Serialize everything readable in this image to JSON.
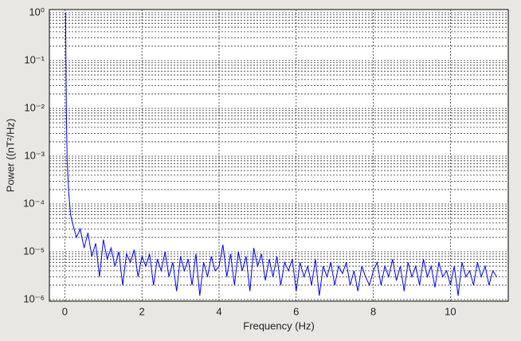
{
  "chart_data": {
    "type": "line",
    "xlabel": "Frequency (Hz)",
    "ylabel": "Power ((nT²/Hz)",
    "x": [
      0.02,
      0.04,
      0.06,
      0.1,
      0.15,
      0.2,
      0.3,
      0.4,
      0.5,
      0.6,
      0.7,
      0.8,
      0.9,
      1.0,
      1.1,
      1.2,
      1.3,
      1.4,
      1.5,
      1.6,
      1.7,
      1.8,
      1.9,
      2.0,
      2.1,
      2.2,
      2.3,
      2.4,
      2.5,
      2.6,
      2.7,
      2.8,
      2.9,
      3.0,
      3.1,
      3.2,
      3.3,
      3.4,
      3.5,
      3.6,
      3.7,
      3.8,
      3.9,
      4.0,
      4.1,
      4.2,
      4.3,
      4.4,
      4.5,
      4.6,
      4.7,
      4.8,
      4.9,
      5.0,
      5.1,
      5.2,
      5.3,
      5.4,
      5.5,
      5.6,
      5.7,
      5.8,
      5.9,
      6.0,
      6.1,
      6.2,
      6.3,
      6.4,
      6.5,
      6.6,
      6.7,
      6.8,
      6.9,
      7.0,
      7.1,
      7.2,
      7.3,
      7.4,
      7.5,
      7.6,
      7.7,
      7.8,
      7.9,
      8.0,
      8.1,
      8.2,
      8.3,
      8.4,
      8.5,
      8.6,
      8.7,
      8.8,
      8.9,
      9.0,
      9.1,
      9.2,
      9.3,
      9.4,
      9.5,
      9.6,
      9.7,
      9.8,
      9.9,
      10.0,
      10.1,
      10.2,
      10.3,
      10.4,
      10.5,
      10.6,
      10.7,
      10.8,
      10.9,
      11.0,
      11.1,
      11.2
    ],
    "series": [
      {
        "color": "#0000ff",
        "values": [
          1,
          0.01,
          0.0008,
          0.00018,
          6e-05,
          4e-05,
          2e-05,
          3e-05,
          1.2e-05,
          2.5e-05,
          8e-06,
          1.5e-05,
          3e-06,
          1.8e-05,
          7e-06,
          1.2e-05,
          5e-06,
          1e-05,
          2e-06,
          9e-06,
          6e-06,
          1.1e-05,
          3e-06,
          8e-06,
          5e-06,
          9e-06,
          2e-06,
          7e-06,
          4e-06,
          1e-05,
          3e-06,
          6e-06,
          1.5e-06,
          8e-06,
          4e-06,
          7e-06,
          2e-06,
          9e-06,
          1.2e-06,
          6e-06,
          3e-06,
          8e-06,
          4e-06,
          5e-06,
          1.4e-05,
          3e-06,
          9e-06,
          2e-06,
          1e-05,
          4e-06,
          8e-06,
          1.5e-06,
          1.2e-05,
          5e-06,
          9e-06,
          2.5e-06,
          7e-06,
          3e-06,
          8e-06,
          2e-06,
          6e-06,
          4e-06,
          7e-06,
          1.5e-06,
          6e-06,
          3e-06,
          5e-06,
          2e-06,
          7e-06,
          1.2e-06,
          5e-06,
          3e-06,
          6e-06,
          2e-06,
          5e-06,
          3.5e-06,
          6e-06,
          2e-06,
          4e-06,
          1.5e-06,
          5e-06,
          3e-06,
          2e-06,
          4e-06,
          6e-06,
          2e-06,
          5e-06,
          3e-06,
          7e-06,
          2.5e-06,
          5e-06,
          1.5e-06,
          6e-06,
          3e-06,
          5e-06,
          2e-06,
          7e-06,
          3e-06,
          5e-06,
          1.8e-06,
          6e-06,
          3e-06,
          4e-06,
          2e-06,
          5e-06,
          1.2e-06,
          6e-06,
          3e-06,
          4e-06,
          2e-06,
          6e-06,
          3e-06,
          5e-06,
          2e-06,
          4e-06,
          3e-06
        ]
      }
    ],
    "xlim": [
      -0.4,
      11.5
    ],
    "xticks": [
      0,
      2,
      4,
      6,
      8,
      10
    ],
    "ylim": [
      1e-06,
      1
    ],
    "log_y": true,
    "yticks": [
      {
        "value": 1e-06,
        "label": "10⁻⁶"
      },
      {
        "value": 1e-05,
        "label": "10⁻⁵"
      },
      {
        "value": 0.0001,
        "label": "10⁻⁴"
      },
      {
        "value": 0.001,
        "label": "10⁻³"
      },
      {
        "value": 0.01,
        "label": "10⁻²"
      },
      {
        "value": 0.1,
        "label": "10⁻¹"
      },
      {
        "value": 1,
        "label": "10⁰"
      }
    ],
    "grid": true,
    "minor_grid": true
  }
}
